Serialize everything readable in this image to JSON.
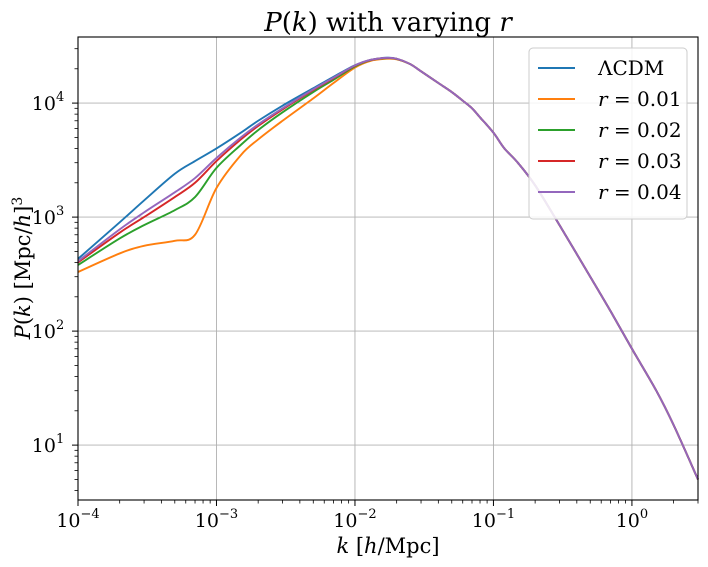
{
  "chart_data": {
    "type": "line",
    "title": "P(k) with varying r",
    "xlabel": "k  [h/Mpc]",
    "ylabel": "P(k)  [Mpc/h]³",
    "xscale": "log",
    "yscale": "log",
    "xlim": [
      0.0001,
      3.0
    ],
    "ylim": [
      3.3,
      38000
    ],
    "grid": true,
    "legend_position": "top-right",
    "x_tick_labels": [
      {
        "value": 0.0001,
        "base": "10",
        "exp": "−4"
      },
      {
        "value": 0.001,
        "base": "10",
        "exp": "−3"
      },
      {
        "value": 0.01,
        "base": "10",
        "exp": "−2"
      },
      {
        "value": 0.1,
        "base": "10",
        "exp": "−1"
      },
      {
        "value": 1,
        "base": "10",
        "exp": "0"
      }
    ],
    "y_tick_labels": [
      {
        "value": 10,
        "base": "10",
        "exp": "1"
      },
      {
        "value": 100,
        "base": "10",
        "exp": "2"
      },
      {
        "value": 1000,
        "base": "10",
        "exp": "3"
      },
      {
        "value": 10000,
        "base": "10",
        "exp": "4"
      }
    ],
    "x": [
      0.0001,
      0.0002,
      0.0003,
      0.0005,
      0.0007,
      0.001,
      0.0015,
      0.002,
      0.003,
      0.005,
      0.007,
      0.01,
      0.013,
      0.017,
      0.02,
      0.025,
      0.03,
      0.04,
      0.05,
      0.06,
      0.07,
      0.08,
      0.1,
      0.12,
      0.15,
      0.2,
      0.3,
      0.5,
      0.7,
      1.0,
      1.5,
      2.0,
      3.0
    ],
    "series": [
      {
        "name": "ΛCDM",
        "color": "#1f77b4",
        "values": [
          430,
          900,
          1400,
          2400,
          3100,
          4000,
          5500,
          7000,
          9500,
          13500,
          17000,
          21500,
          24000,
          25000,
          24500,
          22000,
          19000,
          15000,
          12500,
          10500,
          9000,
          7500,
          5500,
          4000,
          3000,
          1900,
          850,
          300,
          150,
          70,
          30,
          15,
          5
        ]
      },
      {
        "name": "r = 0.01",
        "color": "#ff7f0e",
        "values": [
          330,
          480,
          560,
          620,
          700,
          1800,
          3500,
          4800,
          7000,
          11000,
          15000,
          20500,
          23500,
          24500,
          24200,
          22000,
          19000,
          15000,
          12500,
          10500,
          9000,
          7500,
          5500,
          4000,
          3000,
          1900,
          850,
          300,
          150,
          70,
          30,
          15,
          5
        ]
      },
      {
        "name": "r = 0.02",
        "color": "#2ca02c",
        "values": [
          380,
          650,
          850,
          1150,
          1500,
          2700,
          4300,
          5800,
          8300,
          12500,
          16000,
          21000,
          23800,
          24800,
          24400,
          22000,
          19000,
          15000,
          12500,
          10500,
          9000,
          7500,
          5500,
          4000,
          3000,
          1900,
          850,
          300,
          150,
          70,
          30,
          15,
          5
        ]
      },
      {
        "name": "r = 0.03",
        "color": "#d62728",
        "values": [
          400,
          730,
          1000,
          1500,
          2000,
          3100,
          4800,
          6300,
          8800,
          13000,
          16500,
          21300,
          23900,
          24900,
          24450,
          22000,
          19000,
          15000,
          12500,
          10500,
          9000,
          7500,
          5500,
          4000,
          3000,
          1900,
          850,
          300,
          150,
          70,
          30,
          15,
          5
        ]
      },
      {
        "name": "r = 0.04",
        "color": "#9467bd",
        "values": [
          410,
          780,
          1100,
          1650,
          2200,
          3300,
          5000,
          6500,
          9000,
          13200,
          16700,
          21400,
          23950,
          24950,
          24500,
          22000,
          19000,
          15000,
          12500,
          10500,
          9000,
          7500,
          5500,
          4000,
          3000,
          1900,
          850,
          300,
          150,
          70,
          30,
          15,
          5
        ]
      }
    ]
  }
}
